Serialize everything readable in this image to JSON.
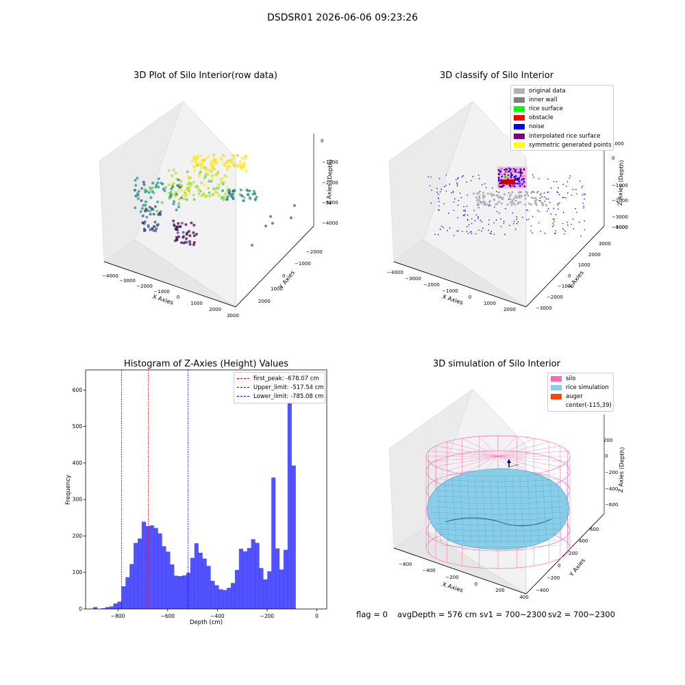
{
  "suptitle": "DSDSR01 2026-06-06 09:23:26",
  "panels": {
    "raw": {
      "title": "3D Plot of Silo Interior(row data)",
      "xlabel": "X Axies",
      "ylabel": "Y Axies",
      "zlabel": "Z Axies (Depth)",
      "xticks": [
        "−4000",
        "−3000",
        "−2000",
        "−1000",
        "0",
        "1000",
        "2000",
        "3000"
      ],
      "yticks": [
        "−2000",
        "−1000",
        "0",
        "1000",
        "2000"
      ],
      "zticks": [
        "0",
        "−1000",
        "−2000",
        "−3000",
        "−4000"
      ]
    },
    "classify": {
      "title": "3D classify of Silo Interior",
      "xlabel": "X Axies",
      "ylabel": "Y Axies",
      "zlabel": "Z Axies (Depth)",
      "xticks": [
        "−4000",
        "−3000",
        "−2000",
        "−1000",
        "0",
        "1000",
        "2000"
      ],
      "yticks": [
        "−3000",
        "−2000",
        "−1000",
        "0",
        "1000",
        "2000",
        "3000"
      ],
      "zticks": [
        "1000",
        "0",
        "−1000",
        "−2000",
        "−3000",
        "−4000",
        "−5000"
      ],
      "legend": [
        {
          "label": "original data",
          "color": "#b3b3b3"
        },
        {
          "label": "inner wall",
          "color": "#808080"
        },
        {
          "label": "rice surface",
          "color": "#00ff00"
        },
        {
          "label": "obstacle",
          "color": "#ff0000"
        },
        {
          "label": "noise",
          "color": "#0000ff"
        },
        {
          "label": "interpolated rice surface",
          "color": "#800080"
        },
        {
          "label": "symmetric generated points",
          "color": "#ffff00"
        }
      ]
    },
    "simulation": {
      "title": "3D simulation of Silo Interior",
      "xlabel": "X Axies",
      "ylabel": "Y Axies",
      "zlabel": "Z Axies (Depth)",
      "xticks": [
        "−600",
        "−400",
        "−200",
        "0",
        "200",
        "400"
      ],
      "yticks": [
        "−400",
        "−200",
        "0",
        "200",
        "400",
        "600"
      ],
      "zticks": [
        "200",
        "0",
        "−200",
        "−400",
        "−600"
      ],
      "legend": [
        {
          "label": "silo",
          "color": "#ff69b4"
        },
        {
          "label": "rice simulation",
          "color": "#87ceeb"
        },
        {
          "label": "auger",
          "color": "#ff4500"
        },
        {
          "label": "center(-115,39)",
          "color": ""
        }
      ]
    }
  },
  "chart_data": {
    "type": "bar",
    "title": "Histogram of Z-Axies (Height) Values",
    "xlabel": "Depth (cm)",
    "ylabel": "Frequency",
    "xlim": [
      -930,
      40
    ],
    "ylim": [
      0,
      655
    ],
    "xticks": [
      -800,
      -600,
      -400,
      -200,
      0
    ],
    "yticks": [
      0,
      100,
      200,
      300,
      400,
      500,
      600
    ],
    "bin_width": 16.3,
    "bin_start": -900,
    "bar_color": "#0000ff",
    "values": [
      5,
      0,
      2,
      5,
      7,
      15,
      20,
      62,
      87,
      123,
      181,
      193,
      239,
      227,
      229,
      222,
      207,
      172,
      157,
      122,
      91,
      90,
      92,
      99,
      140,
      180,
      154,
      138,
      118,
      77,
      65,
      54,
      52,
      58,
      71,
      107,
      165,
      158,
      167,
      191,
      181,
      112,
      81,
      103,
      360,
      166,
      108,
      162,
      620,
      393
    ],
    "lines": [
      {
        "label": "first_peak: -678.07 cm",
        "x": -678.07,
        "color": "#ff0000"
      },
      {
        "label": "Upper_limit: -517.54 cm",
        "x": -517.54,
        "color": "#0000ff"
      },
      {
        "label": "Lower_limit: -785.08 cm",
        "x": -785.08,
        "color": "#0000ff"
      }
    ]
  },
  "status": {
    "flag": "flag = 0",
    "avg": "avgDepth = 576 cm",
    "sv1": "sv1 = 700~2300",
    "sv2": "sv2 = 700~2300"
  }
}
